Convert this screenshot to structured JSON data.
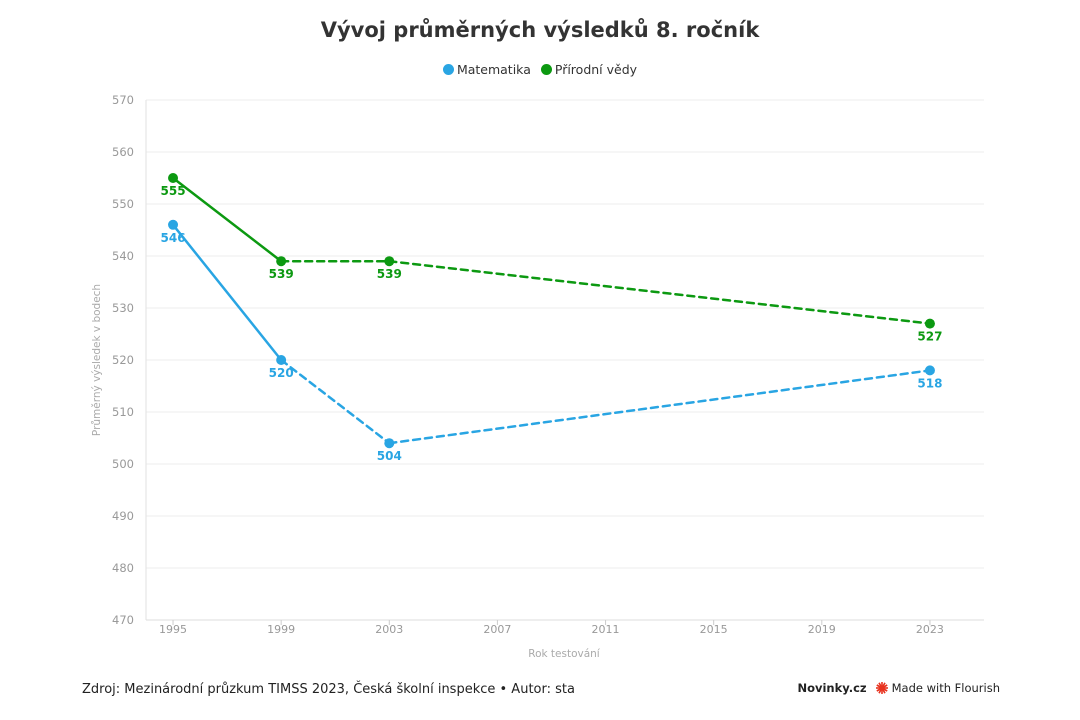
{
  "chart_data": {
    "type": "line",
    "title": "Vývoj průměrných výsledků 8. ročník",
    "xlabel": "Rok testování",
    "ylabel": "Průměrný výsledek v bodech",
    "xlim": [
      1994,
      2025
    ],
    "ylim": [
      470,
      570
    ],
    "x_ticks": [
      1995,
      1999,
      2003,
      2007,
      2011,
      2015,
      2019,
      2023
    ],
    "y_ticks": [
      470,
      480,
      490,
      500,
      510,
      520,
      530,
      540,
      550,
      560,
      570
    ],
    "grid": true,
    "legend_position": "top-center",
    "series": [
      {
        "name": "Matematika",
        "color": "#29a5e3",
        "x": [
          1995,
          1999,
          2003,
          2023
        ],
        "y": [
          546,
          520,
          504,
          518
        ],
        "data_labels": [
          "546",
          "520",
          "504",
          "518"
        ],
        "line_styles": [
          "solid",
          "dashed",
          "dashed"
        ]
      },
      {
        "name": "Přírodní vědy",
        "color": "#0c9911",
        "x": [
          1995,
          1999,
          2003,
          2023
        ],
        "y": [
          555,
          539,
          539,
          527
        ],
        "data_labels": [
          "555",
          "539",
          "539",
          "527"
        ],
        "line_styles": [
          "solid",
          "dashed",
          "dashed"
        ]
      }
    ]
  },
  "footer": {
    "source": "Zdroj: Mezinárodní průzkum TIMSS 2023, Česká školní inspekce • Autor: sta",
    "brand": "Novinky.cz",
    "flourish": "Made with Flourish",
    "flourish_icon": "flourish-logo-icon",
    "flourish_color": "#e8321e"
  }
}
